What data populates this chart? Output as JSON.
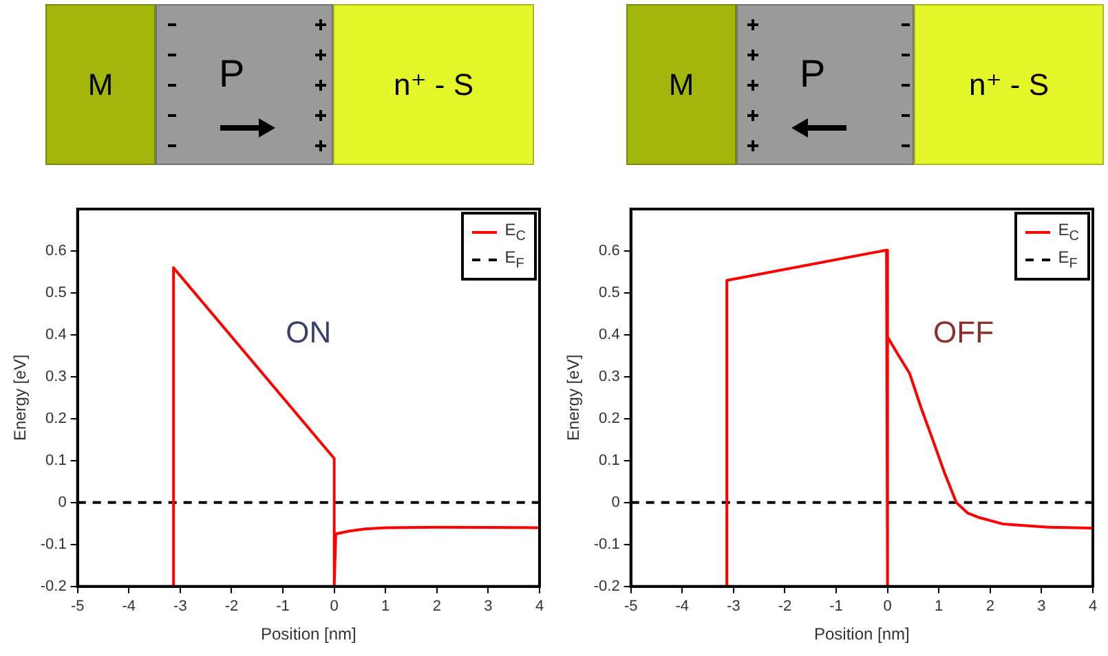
{
  "chart_data": [
    {
      "type": "line",
      "xlabel": "Position [nm]",
      "ylabel": "Energy [eV]",
      "annotations": [
        "M",
        "P",
        "n⁺ - S",
        "ON"
      ],
      "xlim": [
        -5,
        4
      ],
      "ylim": [
        -0.2,
        0.7
      ],
      "xticks": [
        -5,
        -4,
        -3,
        -2,
        -1,
        0,
        1,
        2,
        3,
        4
      ],
      "yticks": [
        -0.2,
        -0.1,
        0,
        0.1,
        0.2,
        0.3,
        0.4,
        0.5,
        0.6
      ],
      "grid": false,
      "legend": "top right",
      "marker": "none",
      "series": [
        {
          "name": "E$_{C}$",
          "color": "#ff0000",
          "line_style": "solid",
          "x": [
            -3.13,
            -3.13,
            0,
            0,
            0.03,
            0.3,
            0.6,
            1,
            2,
            4
          ],
          "values": [
            -0.2,
            0.56,
            0.105,
            -0.2,
            -0.075,
            -0.068,
            -0.063,
            -0.06,
            -0.059,
            -0.06
          ]
        },
        {
          "name": "E$_{F}$",
          "color": "#000000",
          "line_style": "dashed",
          "x": [
            -5,
            4
          ],
          "values": [
            0,
            0
          ]
        }
      ]
    },
    {
      "type": "line",
      "xlabel": "Position [nm]",
      "ylabel": "Energy [eV]",
      "annotations": [
        "M",
        "P",
        "n⁺ - S",
        "OFF"
      ],
      "xlim": [
        -5,
        4
      ],
      "ylim": [
        -0.2,
        0.7
      ],
      "xticks": [
        -5,
        -4,
        -3,
        -2,
        -1,
        0,
        1,
        2,
        3,
        4
      ],
      "yticks": [
        -0.2,
        -0.1,
        0,
        0.1,
        0.2,
        0.3,
        0.4,
        0.5,
        0.6
      ],
      "grid": false,
      "legend": "top right",
      "marker": "none",
      "series": [
        {
          "name": "E$_{C}$",
          "color": "#ff0000",
          "line_style": "solid",
          "x": [
            -3.13,
            -3.13,
            -0.02,
            0,
            0,
            0.2,
            0.43,
            0.66,
            0.88,
            1.11,
            1.34,
            1.56,
            1.79,
            2.24,
            3.14,
            4
          ],
          "values": [
            -0.2,
            0.53,
            0.602,
            -0.2,
            0.395,
            0.354,
            0.308,
            0.224,
            0.15,
            0.071,
            0,
            -0.025,
            -0.036,
            -0.051,
            -0.059,
            -0.061
          ]
        },
        {
          "name": "E$_{F}$",
          "color": "#000000",
          "line_style": "dashed",
          "x": [
            -5,
            4
          ],
          "values": [
            0,
            0
          ]
        }
      ]
    }
  ]
}
